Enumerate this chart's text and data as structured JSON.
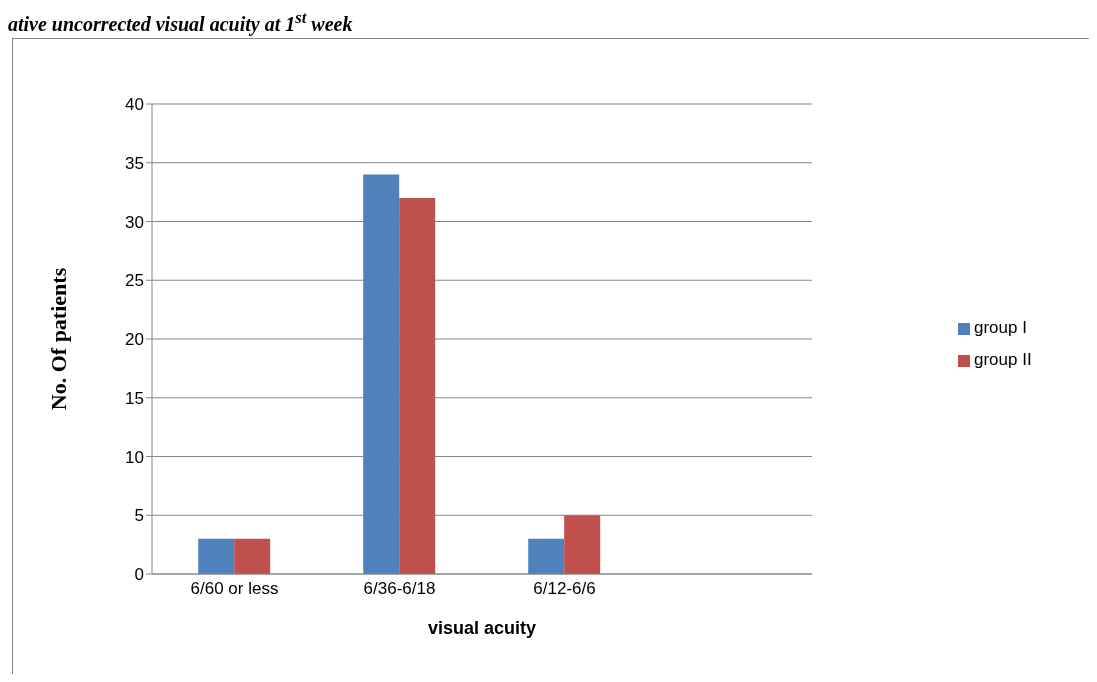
{
  "chart_data": {
    "type": "bar",
    "title": "ative uncorrected visual acuity at 1$^{st}$ week",
    "xlabel": "visual acuity",
    "ylabel": "No. Of patients",
    "categories": [
      "6/60 or less",
      "6/36-6/18",
      "6/12-6/6",
      null
    ],
    "series": [
      {
        "name": "group I",
        "color": "#4f81bd",
        "values": [
          3,
          34,
          3,
          null
        ]
      },
      {
        "name": "group II",
        "color": "#c0504d",
        "values": [
          3,
          32,
          5,
          null
        ]
      }
    ],
    "ylim": [
      0,
      40
    ],
    "yticks": [
      0,
      5,
      10,
      15,
      20,
      25,
      30,
      35,
      40
    ],
    "grid": "y",
    "legend": "right"
  }
}
